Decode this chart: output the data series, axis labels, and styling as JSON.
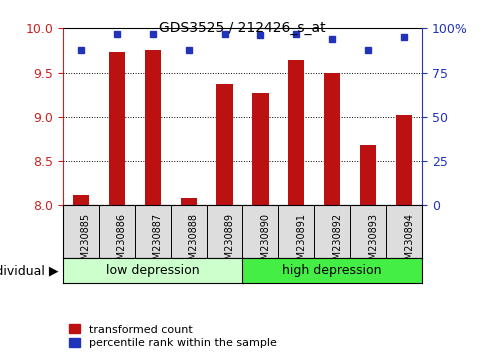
{
  "title": "GDS3525 / 212426_s_at",
  "categories": [
    "GSM230885",
    "GSM230886",
    "GSM230887",
    "GSM230888",
    "GSM230889",
    "GSM230890",
    "GSM230891",
    "GSM230892",
    "GSM230893",
    "GSM230894"
  ],
  "bar_values": [
    8.12,
    9.73,
    9.76,
    8.08,
    9.37,
    9.27,
    9.64,
    9.49,
    8.68,
    9.02
  ],
  "dot_values": [
    88,
    97,
    97,
    88,
    97,
    96,
    97,
    94,
    88,
    95
  ],
  "ylim_left": [
    8.0,
    10.0
  ],
  "ylim_right": [
    0,
    100
  ],
  "yticks_left": [
    8.0,
    8.5,
    9.0,
    9.5,
    10.0
  ],
  "yticks_right": [
    0,
    25,
    50,
    75,
    100
  ],
  "ytick_labels_right": [
    "0",
    "25",
    "50",
    "75",
    "100%"
  ],
  "bar_color": "#bb1111",
  "dot_color": "#2233bb",
  "group1_label": "low depression",
  "group2_label": "high depression",
  "group1_color": "#ccffcc",
  "group2_color": "#44ee44",
  "individual_label": "individual",
  "legend_bar_label": "transformed count",
  "legend_dot_label": "percentile rank within the sample",
  "left_axis_color": "#cc2222",
  "right_axis_color": "#2233bb",
  "tick_bg_color": "#dddddd",
  "n_group1": 5,
  "n_group2": 5
}
